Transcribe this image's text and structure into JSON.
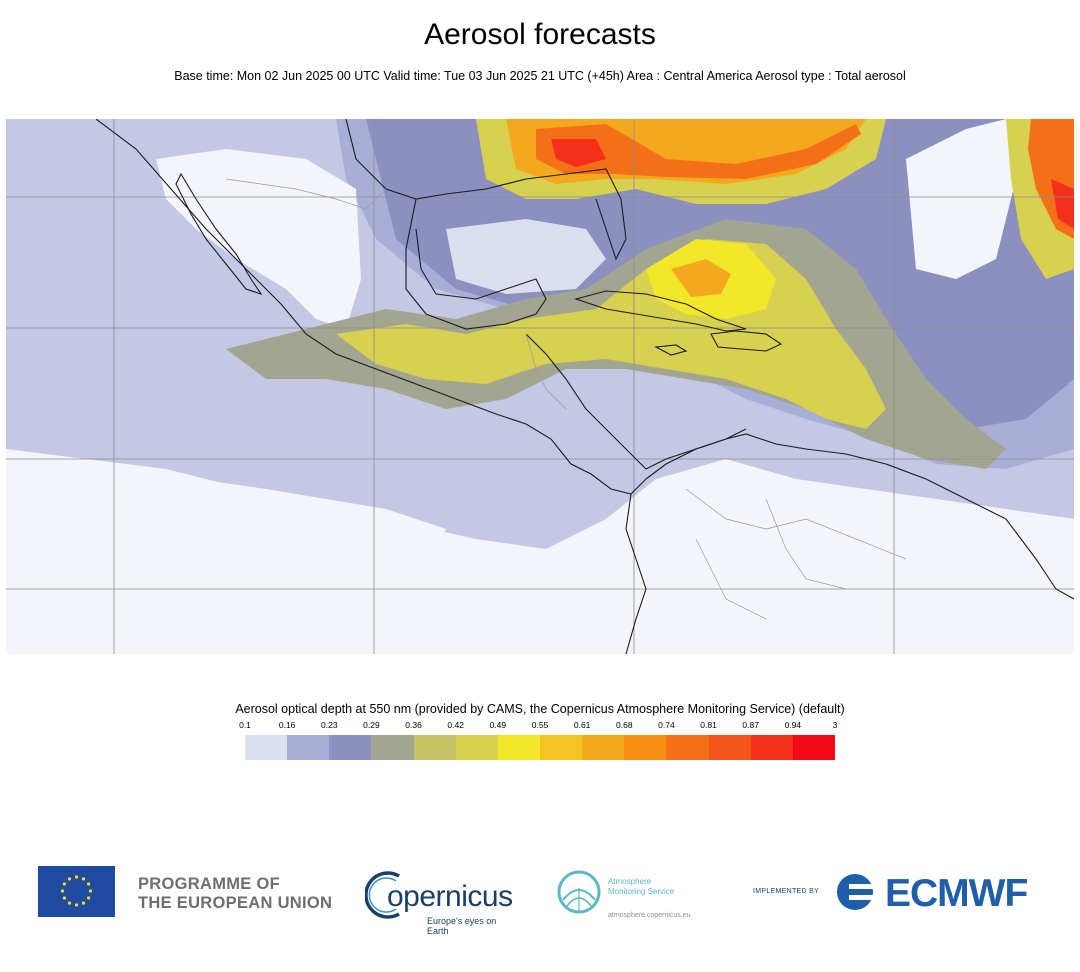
{
  "header": {
    "title": "Aerosol forecasts",
    "subtitle": "Base time: Mon 02 Jun 2025 00 UTC Valid time: Tue 03 Jun 2025 21 UTC (+45h) Area : Central America Aerosol type : Total aerosol"
  },
  "legend": {
    "title": "Aerosol optical depth at 550 nm (provided by CAMS, the Copernicus Atmosphere Monitoring Service) (default)",
    "ticks": [
      "0.1",
      "0.16",
      "0.23",
      "0.29",
      "0.36",
      "0.42",
      "0.49",
      "0.55",
      "0.61",
      "0.68",
      "0.74",
      "0.81",
      "0.87",
      "0.94",
      "3"
    ],
    "colors": [
      "#dcdfee",
      "#a9aed6",
      "#8b90c0",
      "#a2a690",
      "#c6c466",
      "#d7d050",
      "#f3e72a",
      "#f4c422",
      "#f4a81e",
      "#f48e14",
      "#f47018",
      "#f55418",
      "#f4301a",
      "#f40818"
    ]
  },
  "map": {
    "colors": {
      "ocean_base": "#c4c8e4",
      "clean": "#f4f5fb",
      "level_016": "#a9aed6",
      "level_023": "#8b90c0",
      "level_029": "#a2a690",
      "level_042": "#d7d050",
      "level_049": "#f3e72a",
      "level_061": "#f4a81e",
      "level_074": "#f47018",
      "level_087": "#f4301a"
    }
  },
  "footer": {
    "eu_line1": "PROGRAMME OF",
    "eu_line2": "THE EUROPEAN UNION",
    "copernicus_name": "opernicus",
    "copernicus_tagline": "Europe's eyes on Earth",
    "atmosphere_line1": "Atmosphere",
    "atmosphere_line2": "Monitoring Service",
    "atmosphere_url": "atmosphere.copernicus.eu",
    "implemented_by": "IMPLEMENTED BY",
    "ecmwf": "ECMWF",
    "brand_blue": "#1f5ea8"
  }
}
